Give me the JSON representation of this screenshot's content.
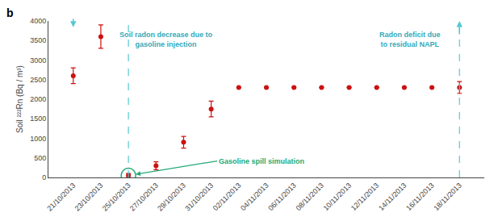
{
  "chart_data": {
    "type": "scatter",
    "marker": "circle",
    "categories": [
      "21/10/2013",
      "23/10/2013",
      "25/10/2013",
      "27/10/2013",
      "29/10/2013",
      "31/10/2013",
      "02/11/2013",
      "04/11/2013",
      "06/11/2013",
      "08/11/2013",
      "10/11/2013",
      "12/11/2013",
      "14/11/2013",
      "16/11/2013",
      "18/11/2013"
    ],
    "values": [
      2600,
      3600,
      50,
      300,
      900,
      1750,
      2300,
      2300,
      2300,
      2300,
      2300,
      2300,
      2300,
      2300,
      2300
    ],
    "errors_up": [
      200,
      300,
      50,
      100,
      150,
      200,
      0,
      0,
      0,
      0,
      0,
      0,
      0,
      0,
      150
    ],
    "errors_down": [
      200,
      300,
      50,
      100,
      150,
      200,
      0,
      0,
      0,
      0,
      0,
      0,
      0,
      0,
      150
    ],
    "color": "#cc1111",
    "ylim": [
      0,
      4000
    ],
    "yticks": [
      0,
      500,
      1000,
      1500,
      2000,
      2500,
      3000,
      3500,
      4000
    ],
    "ylabel": "Soil ²²²Rn (Bq / m³)",
    "grid": false,
    "annotations": [
      {
        "text": "Soil radon decrease due to\ngasoline injection",
        "color": "#33aabb"
      },
      {
        "text": "Radon deficit due\nto residual NAPL",
        "color": "#33aabb"
      },
      {
        "text": "Gasoline spill simulation",
        "color": "#22aa77",
        "category": "25/10/2013"
      },
      {
        "text": "b",
        "color": "#000000"
      }
    ],
    "vlines": [
      {
        "category": "25/10/2013",
        "color": "#55c8d5",
        "line_style": "dashed"
      },
      {
        "category": "18/11/2013",
        "color": "#55c8d5",
        "line_style": "dashed"
      }
    ]
  }
}
